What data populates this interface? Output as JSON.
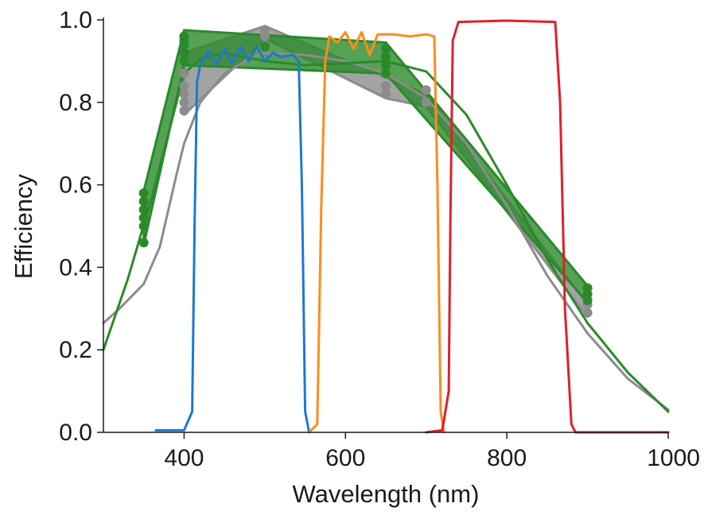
{
  "chart_data": {
    "type": "line",
    "xlabel": "Wavelength (nm)",
    "ylabel": "Efficiency",
    "xlim": [
      300,
      1000
    ],
    "ylim": [
      0.0,
      1.0
    ],
    "x_ticks": [
      400,
      600,
      800,
      1000
    ],
    "y_ticks": [
      0.0,
      0.2,
      0.4,
      0.6,
      0.8,
      1.0
    ],
    "x_tick_labels": [
      "400",
      "600",
      "800",
      "1000"
    ],
    "y_tick_labels": [
      "0.0",
      "0.2",
      "0.4",
      "0.6",
      "0.8",
      "1.0"
    ],
    "grid": false,
    "legend": "none",
    "colors": {
      "gray": "#8c8c8c",
      "green": "#2a8a2a",
      "blue": "#1f77d0",
      "orange": "#ff8c1a",
      "red": "#e0202a",
      "axis": "#1a1a1a"
    },
    "bands": [
      {
        "color": "gray",
        "upper": [
          [
            400,
            0.92
          ],
          [
            500,
            0.985
          ],
          [
            650,
            0.86
          ],
          [
            700,
            0.82
          ],
          [
            900,
            0.31
          ]
        ],
        "lower": [
          [
            400,
            0.77
          ],
          [
            500,
            0.955
          ],
          [
            650,
            0.81
          ],
          [
            700,
            0.79
          ],
          [
            900,
            0.28
          ]
        ]
      },
      {
        "color": "green",
        "upper": [
          [
            350,
            0.585
          ],
          [
            400,
            0.975
          ],
          [
            650,
            0.945
          ],
          [
            900,
            0.355
          ]
        ],
        "lower": [
          [
            350,
            0.455
          ],
          [
            400,
            0.89
          ],
          [
            650,
            0.87
          ],
          [
            900,
            0.315
          ]
        ]
      }
    ],
    "markers": [
      {
        "color": "gray",
        "points": [
          [
            400,
            0.78
          ],
          [
            400,
            0.8
          ],
          [
            400,
            0.82
          ],
          [
            400,
            0.84
          ],
          [
            400,
            0.87
          ],
          [
            400,
            0.9
          ],
          [
            500,
            0.96
          ],
          [
            500,
            0.975
          ],
          [
            650,
            0.82
          ],
          [
            650,
            0.84
          ],
          [
            700,
            0.8
          ],
          [
            700,
            0.83
          ],
          [
            900,
            0.29
          ],
          [
            900,
            0.31
          ]
        ]
      },
      {
        "color": "green",
        "points": [
          [
            350,
            0.46
          ],
          [
            350,
            0.5
          ],
          [
            350,
            0.52
          ],
          [
            350,
            0.54
          ],
          [
            350,
            0.56
          ],
          [
            350,
            0.58
          ],
          [
            400,
            0.9
          ],
          [
            400,
            0.92
          ],
          [
            400,
            0.94
          ],
          [
            400,
            0.95
          ],
          [
            400,
            0.96
          ],
          [
            500,
            0.935
          ],
          [
            650,
            0.87
          ],
          [
            650,
            0.89
          ],
          [
            650,
            0.91
          ],
          [
            650,
            0.93
          ],
          [
            900,
            0.32
          ],
          [
            900,
            0.335
          ],
          [
            900,
            0.35
          ]
        ]
      }
    ],
    "series": [
      {
        "color": "gray",
        "points": [
          [
            300,
            0.265
          ],
          [
            320,
            0.3
          ],
          [
            350,
            0.36
          ],
          [
            370,
            0.45
          ],
          [
            390,
            0.62
          ],
          [
            400,
            0.7
          ],
          [
            420,
            0.8
          ],
          [
            450,
            0.87
          ],
          [
            480,
            0.905
          ],
          [
            500,
            0.92
          ],
          [
            550,
            0.915
          ],
          [
            600,
            0.9
          ],
          [
            650,
            0.87
          ],
          [
            700,
            0.81
          ],
          [
            750,
            0.7
          ],
          [
            800,
            0.55
          ],
          [
            850,
            0.38
          ],
          [
            900,
            0.24
          ],
          [
            950,
            0.13
          ],
          [
            1000,
            0.055
          ]
        ]
      },
      {
        "color": "green",
        "points": [
          [
            300,
            0.2
          ],
          [
            330,
            0.37
          ],
          [
            360,
            0.57
          ],
          [
            380,
            0.72
          ],
          [
            400,
            0.87
          ],
          [
            420,
            0.905
          ],
          [
            450,
            0.92
          ],
          [
            500,
            0.9
          ],
          [
            550,
            0.89
          ],
          [
            600,
            0.895
          ],
          [
            650,
            0.9
          ],
          [
            700,
            0.875
          ],
          [
            750,
            0.77
          ],
          [
            800,
            0.6
          ],
          [
            850,
            0.42
          ],
          [
            900,
            0.265
          ],
          [
            950,
            0.145
          ],
          [
            1000,
            0.05
          ]
        ]
      },
      {
        "color": "blue",
        "points": [
          [
            365,
            0.005
          ],
          [
            400,
            0.005
          ],
          [
            410,
            0.05
          ],
          [
            413,
            0.5
          ],
          [
            416,
            0.85
          ],
          [
            420,
            0.89
          ],
          [
            430,
            0.925
          ],
          [
            440,
            0.89
          ],
          [
            450,
            0.93
          ],
          [
            460,
            0.895
          ],
          [
            470,
            0.935
          ],
          [
            480,
            0.9
          ],
          [
            490,
            0.935
          ],
          [
            500,
            0.9
          ],
          [
            510,
            0.92
          ],
          [
            520,
            0.91
          ],
          [
            535,
            0.915
          ],
          [
            542,
            0.9
          ],
          [
            546,
            0.6
          ],
          [
            550,
            0.05
          ],
          [
            555,
            0.0
          ]
        ]
      },
      {
        "color": "orange",
        "points": [
          [
            555,
            0.0
          ],
          [
            565,
            0.02
          ],
          [
            570,
            0.55
          ],
          [
            575,
            0.9
          ],
          [
            580,
            0.96
          ],
          [
            590,
            0.945
          ],
          [
            600,
            0.97
          ],
          [
            610,
            0.93
          ],
          [
            620,
            0.97
          ],
          [
            630,
            0.915
          ],
          [
            640,
            0.965
          ],
          [
            660,
            0.965
          ],
          [
            680,
            0.96
          ],
          [
            700,
            0.965
          ],
          [
            710,
            0.96
          ],
          [
            714,
            0.6
          ],
          [
            718,
            0.05
          ],
          [
            722,
            0.0
          ]
        ]
      },
      {
        "color": "red",
        "points": [
          [
            700,
            0.0
          ],
          [
            720,
            0.005
          ],
          [
            728,
            0.1
          ],
          [
            730,
            0.5
          ],
          [
            733,
            0.95
          ],
          [
            740,
            0.995
          ],
          [
            800,
            0.998
          ],
          [
            860,
            0.995
          ],
          [
            866,
            0.8
          ],
          [
            872,
            0.3
          ],
          [
            880,
            0.02
          ],
          [
            885,
            0.0
          ],
          [
            1000,
            0.0
          ]
        ]
      }
    ]
  }
}
